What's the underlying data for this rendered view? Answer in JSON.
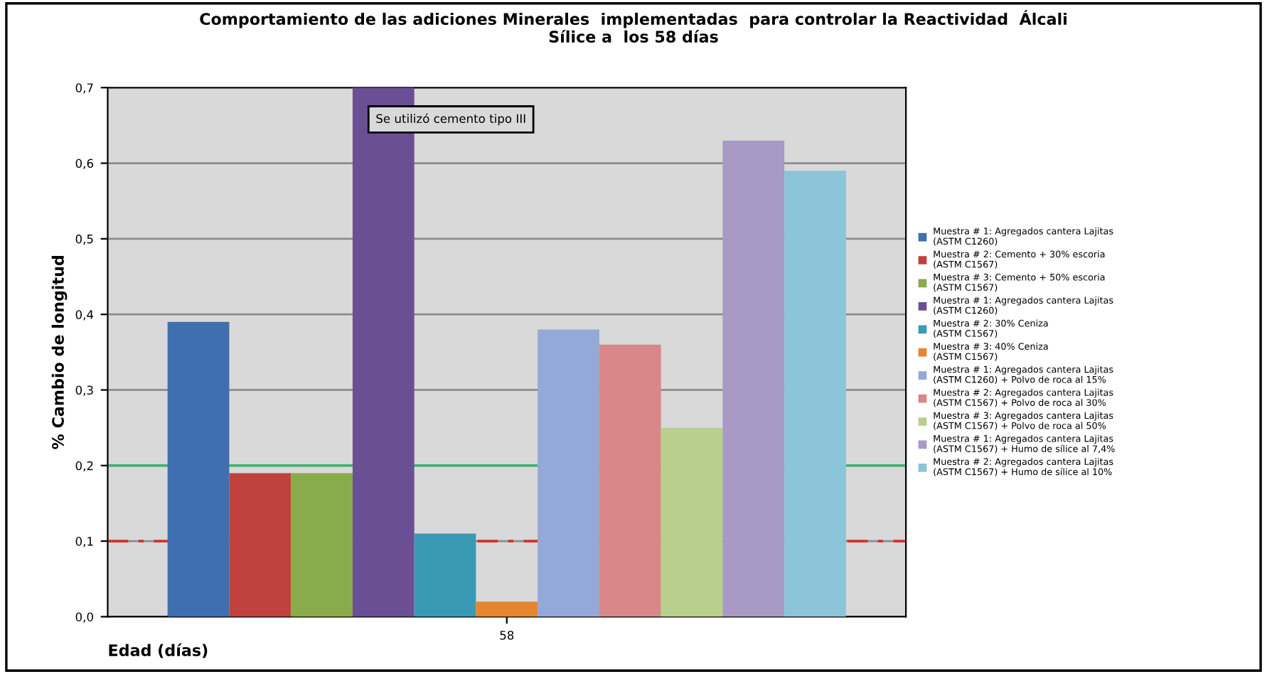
{
  "chart_data": {
    "type": "bar",
    "title": "Comportamiento de las adiciones Minerales  implementadas  para controlar la Reactividad  Álcali\nSílice a  los 58 días",
    "xlabel": "Edad (días)",
    "ylabel": "% Cambio de longitud",
    "categories": [
      "58"
    ],
    "series": [
      {
        "name": "Muestra # 1: Agregados cantera Lajitas\n(ASTM C1260)",
        "color": "#3f6fae",
        "values": [
          0.39
        ]
      },
      {
        "name": "Muestra # 2: Cemento + 30% escoria\n(ASTM C1567)",
        "color": "#c0413d",
        "values": [
          0.19
        ]
      },
      {
        "name": "Muestra # 3: Cemento + 50% escoria\n(ASTM C1567)",
        "color": "#8aab4a",
        "values": [
          0.19
        ]
      },
      {
        "name": "Muestra # 1: Agregados cantera Lajitas\n(ASTM C1260)",
        "color": "#6b4f94",
        "values": [
          0.7
        ]
      },
      {
        "name": "Muestra # 2: 30% Ceniza\n(ASTM C1567)",
        "color": "#3a9ab5",
        "values": [
          0.11
        ]
      },
      {
        "name": "Muestra # 3: 40% Ceniza\n(ASTM C1567)",
        "color": "#e7862f",
        "values": [
          0.02
        ]
      },
      {
        "name": "Muestra # 1: Agregados cantera Lajitas\n(ASTM C1260) + Polvo de roca al 15%",
        "color": "#94a9d8",
        "values": [
          0.38
        ]
      },
      {
        "name": "Muestra # 2: Agregados cantera Lajitas\n(ASTM C1567) + Polvo de roca al 30%",
        "color": "#d88888",
        "values": [
          0.36
        ]
      },
      {
        "name": "Muestra # 3: Agregados cantera Lajitas\n(ASTM C1567) + Polvo de roca al 50%",
        "color": "#b9cf8c",
        "values": [
          0.25
        ]
      },
      {
        "name": "Muestra # 1: Agregados cantera Lajitas\n(ASTM C1567) + Humo de sílice al 7,4%",
        "color": "#a899c5",
        "values": [
          0.63
        ]
      },
      {
        "name": "Muestra # 2: Agregados cantera Lajitas\n(ASTM C1567) + Humo de sílice al 10%",
        "color": "#8cc4d9",
        "values": [
          0.59
        ]
      }
    ],
    "ylim": [
      0,
      0.7
    ],
    "yticks": [
      {
        "value": 0,
        "label": "0,0"
      },
      {
        "value": 0.1,
        "label": "0,1"
      },
      {
        "value": 0.2,
        "label": "0,2"
      },
      {
        "value": 0.3,
        "label": "0,3"
      },
      {
        "value": 0.4,
        "label": "0,4"
      },
      {
        "value": 0.5,
        "label": "0,5"
      },
      {
        "value": 0.6,
        "label": "0,6"
      },
      {
        "value": 0.7,
        "label": "0,7"
      }
    ],
    "grid": "y",
    "legend": "right",
    "ref_lines": [
      {
        "axis": "y",
        "value": 0.2,
        "color": "#3cb371",
        "line_style": "solid"
      },
      {
        "axis": "y",
        "value": 0.1,
        "color": "#d9302c",
        "line_style": "dashed"
      }
    ],
    "annotations": [
      "Se utilizó cemento tipo III"
    ]
  }
}
